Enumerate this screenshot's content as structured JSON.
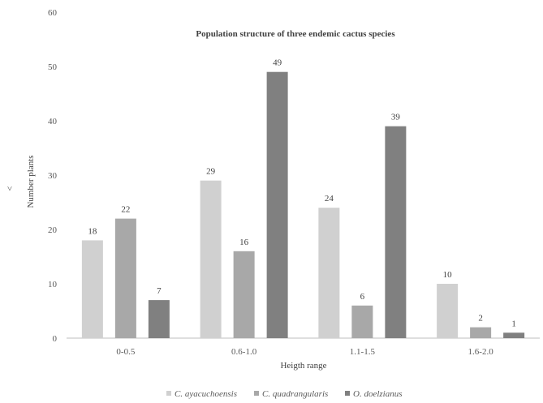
{
  "chart_data": {
    "type": "bar",
    "title": "Population  structure of three endemic  cactus species",
    "xlabel": "Heigth range",
    "ylabel": "Number plants",
    "ylabel_note": "˅",
    "categories": [
      "0-0.5",
      "0.6-1.0",
      "1.1-1.5",
      "1.6-2.0"
    ],
    "ylim": [
      0,
      60
    ],
    "yticks": [
      "0",
      "10",
      "20",
      "30",
      "40",
      "50",
      "60"
    ],
    "grid": false,
    "legend_position": "bottom",
    "series": [
      {
        "name": "C. ayacuchoensis",
        "color": "#d0d0d0",
        "values": [
          18,
          29,
          24,
          10
        ],
        "labels": [
          "18",
          "29",
          "24",
          "10"
        ]
      },
      {
        "name": "C. quadrangularis",
        "color": "#a8a8a8",
        "values": [
          22,
          16,
          6,
          2
        ],
        "labels": [
          "22",
          "16",
          "6",
          "2"
        ]
      },
      {
        "name": "O. doelzianus",
        "color": "#808080",
        "values": [
          7,
          49,
          39,
          1
        ],
        "labels": [
          "7",
          "49",
          "39",
          "1"
        ]
      }
    ]
  }
}
